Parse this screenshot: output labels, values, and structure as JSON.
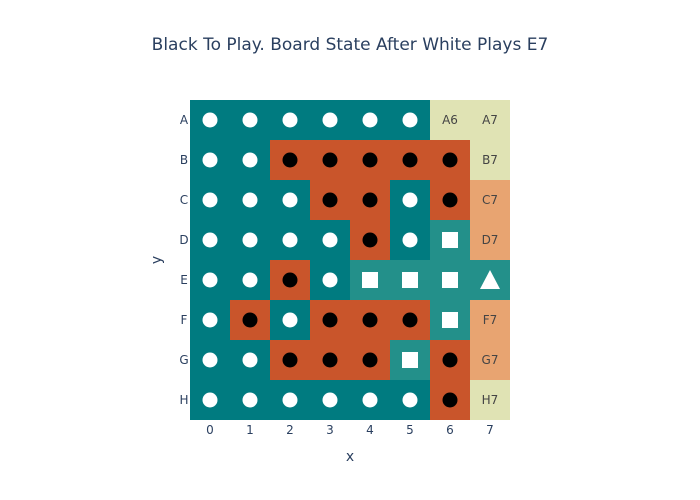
{
  "title": "Black To Play. Board State After White Plays E7",
  "xlabel": "x",
  "ylabel": "y",
  "x_ticks": [
    "0",
    "1",
    "2",
    "3",
    "4",
    "5",
    "6",
    "7"
  ],
  "y_ticks": [
    "A",
    "B",
    "C",
    "D",
    "E",
    "F",
    "G",
    "H"
  ],
  "colors": {
    "teal": "#007b80",
    "orange": "#c9552b",
    "green_teal": "#23908a",
    "pale": "#e0e3b4",
    "peach": "#e8a471",
    "white_piece": "#ffffff",
    "black_piece": "#000000",
    "label": "#444444"
  },
  "board": {
    "rows": [
      "TTTTTTPP",
      "TTOOOOOP",
      "TTTOOTOE",
      "TTTTOTGE",
      "TTOTGGGG",
      "TOTOOOGE",
      "TTOOOGOE",
      "TTTTTTOP"
    ],
    "pieces": [
      "WWWWWW..",
      "WWBBBBB.",
      "WWWBBWB.",
      "WWWWBWS.",
      "WWBWSSST",
      "WBWBBBS.",
      "WWBBBSB.",
      "WWWWWWB."
    ],
    "cell_labels": {
      "A6": "A6",
      "A7": "A7",
      "B7": "B7",
      "C7": "C7",
      "D7": "D7",
      "F7": "F7",
      "G7": "G7",
      "H7": "H7"
    }
  }
}
